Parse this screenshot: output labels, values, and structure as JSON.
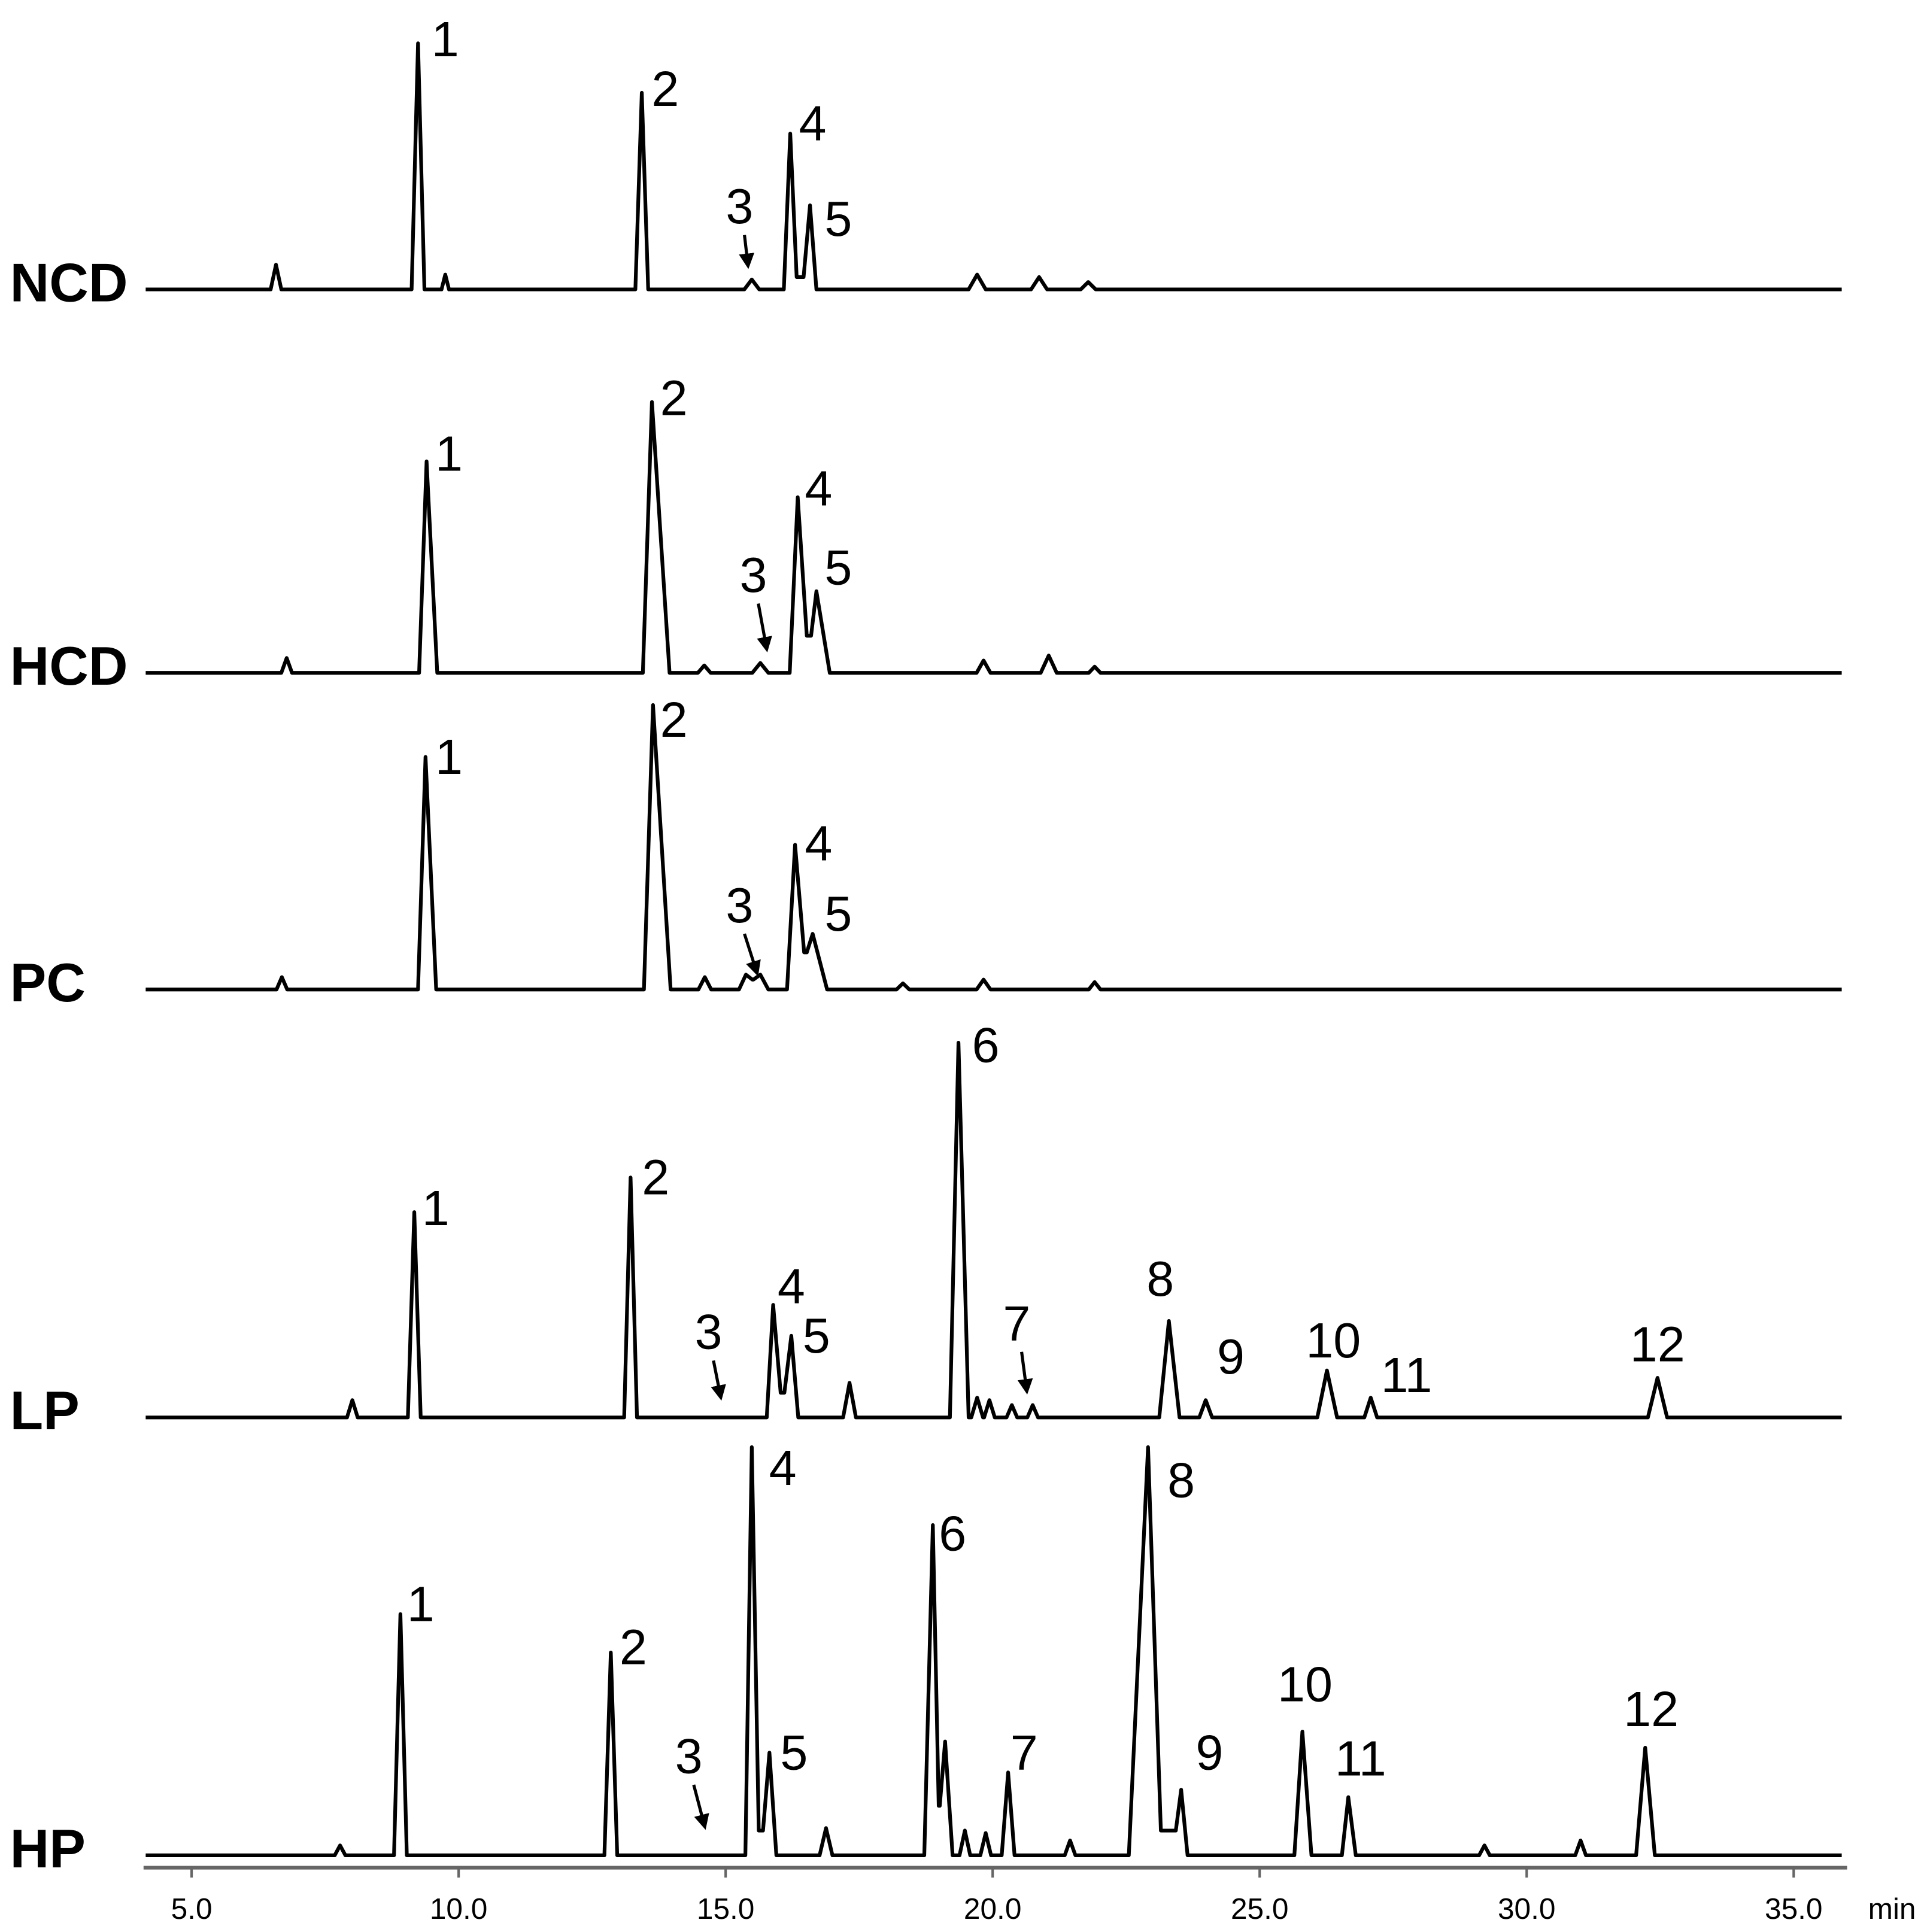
{
  "chart_data": {
    "type": "line",
    "x_label": "min",
    "xlim": [
      4.1,
      36.0
    ],
    "xticks": [
      {
        "value": 5,
        "label": "5.0"
      },
      {
        "value": 10,
        "label": "10.0"
      },
      {
        "value": 15,
        "label": "15.0"
      },
      {
        "value": 20,
        "label": "20.0"
      },
      {
        "value": 25,
        "label": "25.0"
      },
      {
        "value": 30,
        "label": "30.0"
      },
      {
        "value": 35,
        "label": "35.0"
      }
    ],
    "ylim": [
      0,
      330
    ],
    "series": [
      {
        "name": "NCD",
        "color": "#000000",
        "x": [
          4.14,
          6.48,
          6.58,
          6.68,
          9.12,
          9.24,
          9.36,
          9.68,
          9.75,
          9.82,
          13.31,
          13.43,
          13.55,
          15.35,
          15.49,
          15.63,
          16.09,
          16.21,
          16.33,
          16.46,
          16.58,
          16.7,
          19.55,
          19.71,
          19.87,
          20.72,
          20.87,
          21.02,
          21.65,
          21.79,
          21.93,
          35.9
        ],
        "values": [
          0,
          0,
          20,
          0,
          0,
          199,
          0,
          0,
          12,
          0,
          0,
          159,
          0,
          0,
          8,
          0,
          0,
          126,
          10,
          10,
          68,
          0,
          0,
          12,
          0,
          0,
          10,
          0,
          0,
          6,
          0,
          0
        ],
        "peaks": [
          {
            "label": "1",
            "x": 9.75,
            "y": 199
          },
          {
            "label": "2",
            "x": 13.87,
            "y": 159
          },
          {
            "label": "3",
            "x": 15.26,
            "y": 64,
            "arrow_x": 15.42,
            "arrow_y": 19
          },
          {
            "label": "4",
            "x": 16.63,
            "y": 131
          },
          {
            "label": "5",
            "x": 17.11,
            "y": 54
          }
        ]
      },
      {
        "name": "HCD",
        "color": "#000000",
        "x": [
          4.14,
          6.68,
          6.78,
          6.88,
          9.26,
          9.4,
          9.6,
          13.45,
          13.62,
          13.95,
          14.48,
          14.6,
          14.72,
          15.5,
          15.65,
          15.8,
          16.2,
          16.35,
          16.52,
          16.6,
          16.7,
          16.95,
          19.7,
          19.83,
          19.96,
          20.9,
          21.05,
          21.2,
          21.8,
          21.91,
          22.02,
          35.9
        ],
        "values": [
          0,
          0,
          12,
          0,
          0,
          171,
          0,
          0,
          219,
          0,
          0,
          6,
          0,
          0,
          8,
          0,
          0,
          142,
          30,
          30,
          66,
          0,
          0,
          10,
          0,
          0,
          14,
          0,
          0,
          5,
          0,
          0
        ],
        "peaks": [
          {
            "label": "1",
            "x": 9.82,
            "y": 174
          },
          {
            "label": "2",
            "x": 14.03,
            "y": 219
          },
          {
            "label": "3",
            "x": 15.52,
            "y": 76,
            "arrow_x": 15.77,
            "arrow_y": 19
          },
          {
            "label": "4",
            "x": 16.74,
            "y": 146
          },
          {
            "label": "5",
            "x": 17.11,
            "y": 82
          }
        ]
      },
      {
        "name": "PC",
        "color": "#000000",
        "x": [
          4.14,
          6.59,
          6.69,
          6.79,
          9.24,
          9.38,
          9.58,
          13.47,
          13.64,
          13.97,
          14.49,
          14.61,
          14.73,
          15.25,
          15.38,
          15.5,
          15.52,
          15.65,
          15.8,
          16.15,
          16.3,
          16.47,
          16.52,
          16.63,
          16.9,
          18.2,
          18.32,
          18.44,
          19.7,
          19.83,
          19.96,
          21.8,
          21.91,
          22.02,
          35.9
        ],
        "values": [
          0,
          0,
          10,
          0,
          0,
          188,
          0,
          0,
          230,
          0,
          0,
          10,
          0,
          0,
          12,
          8,
          8,
          12,
          0,
          0,
          117,
          30,
          30,
          45,
          0,
          0,
          5,
          0,
          0,
          8,
          0,
          0,
          6,
          0,
          0
        ],
        "peaks": [
          {
            "label": "1",
            "x": 9.82,
            "y": 185
          },
          {
            "label": "2",
            "x": 14.03,
            "y": 215
          },
          {
            "label": "3",
            "x": 15.26,
            "y": 65,
            "arrow_x": 15.59,
            "arrow_y": 13
          },
          {
            "label": "4",
            "x": 16.74,
            "y": 115
          },
          {
            "label": "5",
            "x": 17.11,
            "y": 58
          }
        ]
      },
      {
        "name": "LP",
        "color": "#000000",
        "x": [
          4.14,
          7.91,
          8.01,
          8.11,
          9.05,
          9.17,
          9.29,
          13.1,
          13.22,
          13.34,
          15.77,
          15.89,
          16.03,
          16.1,
          16.23,
          16.36,
          17.2,
          17.32,
          17.44,
          19.2,
          19.36,
          19.55,
          19.6,
          19.71,
          19.82,
          19.84,
          19.94,
          20.04,
          20.26,
          20.36,
          20.46,
          20.65,
          20.75,
          20.85,
          23.12,
          23.3,
          23.5,
          23.87,
          23.99,
          24.11,
          26.08,
          26.26,
          26.45,
          26.96,
          27.08,
          27.2,
          32.27,
          32.45,
          32.63,
          35.9
        ],
        "values": [
          0,
          0,
          14,
          0,
          0,
          166,
          0,
          0,
          194,
          0,
          0,
          91,
          20,
          20,
          66,
          0,
          0,
          28,
          0,
          0,
          303,
          0,
          0,
          16,
          0,
          0,
          14,
          0,
          0,
          10,
          0,
          0,
          10,
          0,
          0,
          78,
          0,
          0,
          14,
          0,
          0,
          38,
          0,
          0,
          16,
          0,
          0,
          32,
          0,
          0
        ],
        "peaks": [
          {
            "label": "1",
            "x": 9.57,
            "y": 166
          },
          {
            "label": "2",
            "x": 13.69,
            "y": 191
          },
          {
            "label": "3",
            "x": 14.68,
            "y": 66,
            "arrow_x": 14.91,
            "arrow_y": 16
          },
          {
            "label": "4",
            "x": 16.23,
            "y": 103
          },
          {
            "label": "5",
            "x": 16.7,
            "y": 63
          },
          {
            "label": "6",
            "x": 19.87,
            "y": 298
          },
          {
            "label": "7",
            "x": 20.45,
            "y": 73,
            "arrow_x": 20.64,
            "arrow_y": 21
          },
          {
            "label": "8",
            "x": 23.14,
            "y": 109
          },
          {
            "label": "9",
            "x": 24.46,
            "y": 46
          },
          {
            "label": "10",
            "x": 26.38,
            "y": 59
          },
          {
            "label": "11",
            "x": 27.75,
            "y": 31
          },
          {
            "label": "12",
            "x": 32.45,
            "y": 56
          }
        ]
      },
      {
        "name": "HP",
        "color": "#000000",
        "x": [
          4.14,
          7.68,
          7.78,
          7.88,
          8.79,
          8.91,
          9.03,
          12.73,
          12.85,
          12.97,
          15.37,
          15.49,
          15.62,
          15.7,
          15.82,
          15.95,
          16.76,
          16.88,
          17.0,
          18.72,
          18.88,
          18.99,
          19.01,
          19.11,
          19.25,
          19.38,
          19.48,
          19.58,
          19.77,
          19.87,
          19.97,
          20.17,
          20.29,
          20.41,
          21.35,
          21.45,
          21.55,
          22.55,
          22.91,
          23.15,
          23.43,
          23.53,
          23.65,
          25.65,
          25.8,
          25.97,
          26.54,
          26.66,
          26.8,
          29.11,
          29.21,
          29.31,
          30.91,
          31.01,
          31.11,
          32.05,
          32.22,
          32.4,
          35.9
        ],
        "values": [
          0,
          0,
          8,
          0,
          0,
          195,
          0,
          0,
          164,
          0,
          0,
          330,
          20,
          20,
          83,
          0,
          0,
          22,
          0,
          0,
          267,
          40,
          40,
          92,
          0,
          0,
          20,
          0,
          0,
          18,
          0,
          0,
          67,
          0,
          0,
          12,
          0,
          0,
          330,
          20,
          20,
          53,
          0,
          0,
          100,
          0,
          0,
          47,
          0,
          0,
          8,
          0,
          0,
          12,
          0,
          0,
          87,
          0,
          0
        ],
        "peaks": [
          {
            "label": "1",
            "x": 9.29,
            "y": 200
          },
          {
            "label": "2",
            "x": 13.27,
            "y": 165
          },
          {
            "label": "3",
            "x": 14.31,
            "y": 77,
            "arrow_x": 14.61,
            "arrow_y": 23
          },
          {
            "label": "4",
            "x": 16.07,
            "y": 310
          },
          {
            "label": "5",
            "x": 16.28,
            "y": 80
          },
          {
            "label": "6",
            "x": 19.25,
            "y": 257
          },
          {
            "label": "7",
            "x": 20.59,
            "y": 80
          },
          {
            "label": "8",
            "x": 23.53,
            "y": 300
          },
          {
            "label": "9",
            "x": 24.06,
            "y": 80
          },
          {
            "label": "10",
            "x": 25.85,
            "y": 135
          },
          {
            "label": "11",
            "x": 26.89,
            "y": 75
          },
          {
            "label": "12",
            "x": 32.33,
            "y": 115
          }
        ]
      }
    ]
  }
}
